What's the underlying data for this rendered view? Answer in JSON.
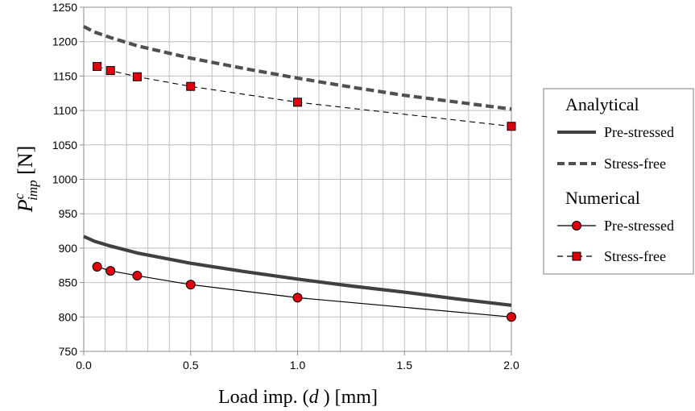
{
  "chart_data": {
    "type": "line",
    "xlabel": {
      "prefix": "Load imp. (",
      "var": "d",
      "suffix": " ) [mm]"
    },
    "ylabel": {
      "var": "P",
      "sup": "c",
      "sub": "imp",
      "unit": " [N]"
    },
    "xlim": [
      0,
      2
    ],
    "ylim": [
      750,
      1250
    ],
    "x_ticks": [
      "0.0",
      "0.5",
      "1.0",
      "1.5",
      "2.0"
    ],
    "y_ticks": [
      "750",
      "800",
      "850",
      "900",
      "950",
      "1000",
      "1050",
      "1100",
      "1150",
      "1200",
      "1250"
    ],
    "grid": true,
    "legend_position": "right",
    "legend": {
      "analytical_header": "Analytical",
      "numerical_header": "Numerical",
      "pre_stressed": "Pre-stressed",
      "stress_free": "Stress-free"
    },
    "series": [
      {
        "group": "Analytical",
        "name": "Pre-stressed",
        "style": "solid-thick",
        "color": "#404040",
        "x": [
          0,
          0.05,
          0.125,
          0.25,
          0.5,
          0.75,
          1.0,
          1.25,
          1.5,
          1.75,
          2.0
        ],
        "y": [
          917,
          910,
          903,
          893,
          878,
          866,
          855,
          845,
          836,
          826,
          817
        ]
      },
      {
        "group": "Analytical",
        "name": "Stress-free",
        "style": "dashed-thick",
        "color": "#505050",
        "x": [
          0,
          0.05,
          0.125,
          0.25,
          0.5,
          0.75,
          1.0,
          1.25,
          1.5,
          1.75,
          2.0
        ],
        "y": [
          1222,
          1214,
          1206,
          1194,
          1176,
          1161,
          1147,
          1134,
          1122,
          1112,
          1102
        ]
      },
      {
        "group": "Numerical",
        "name": "Pre-stressed",
        "style": "solid-thin",
        "marker": "circle",
        "color": "#000000",
        "marker_color": "#e0000d",
        "x": [
          0.0625,
          0.125,
          0.25,
          0.5,
          1.0,
          2.0
        ],
        "y": [
          873,
          867,
          860,
          847,
          828,
          800
        ]
      },
      {
        "group": "Numerical",
        "name": "Stress-free",
        "style": "dashed-thin",
        "marker": "square",
        "color": "#000000",
        "marker_color": "#e0000d",
        "x": [
          0.0625,
          0.125,
          0.25,
          0.5,
          1.0,
          2.0
        ],
        "y": [
          1164,
          1158,
          1149,
          1135,
          1112,
          1077
        ]
      }
    ]
  }
}
